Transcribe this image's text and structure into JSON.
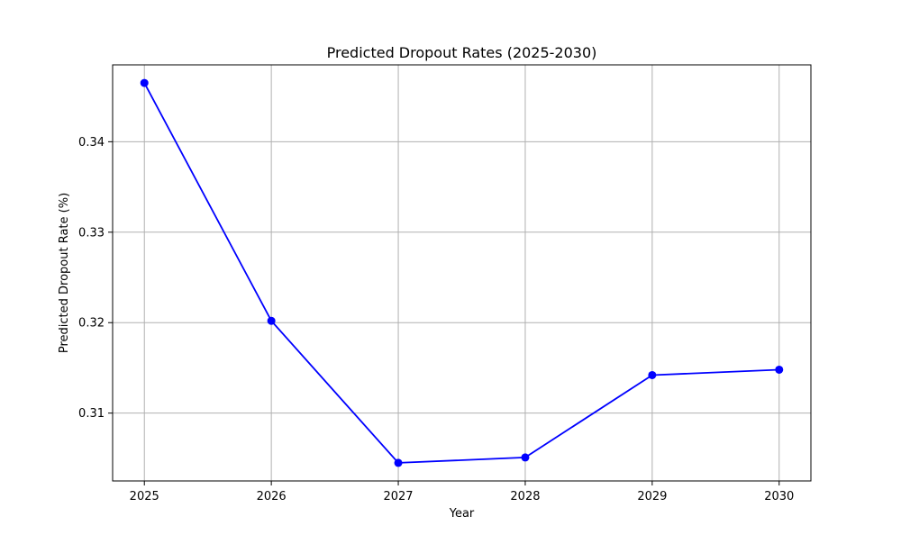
{
  "chart_data": {
    "type": "line",
    "title": "Predicted Dropout Rates (2025-2030)",
    "xlabel": "Year",
    "ylabel": "Predicted Dropout Rate (%)",
    "x": [
      2025,
      2026,
      2027,
      2028,
      2029,
      2030
    ],
    "x_tick_labels": [
      "2025",
      "2026",
      "2027",
      "2028",
      "2029",
      "2030"
    ],
    "y_ticks": [
      0.31,
      0.32,
      0.33,
      0.34
    ],
    "y_tick_labels": [
      "0.31",
      "0.32",
      "0.33",
      "0.34"
    ],
    "xlim": [
      2024.75,
      2030.25
    ],
    "ylim": [
      0.3025,
      0.3485
    ],
    "grid": true,
    "series": [
      {
        "values": [
          0.3465,
          0.3202,
          0.3045,
          0.3051,
          0.3142,
          0.3148
        ],
        "color": "#0000ff",
        "marker": "circle"
      }
    ]
  }
}
